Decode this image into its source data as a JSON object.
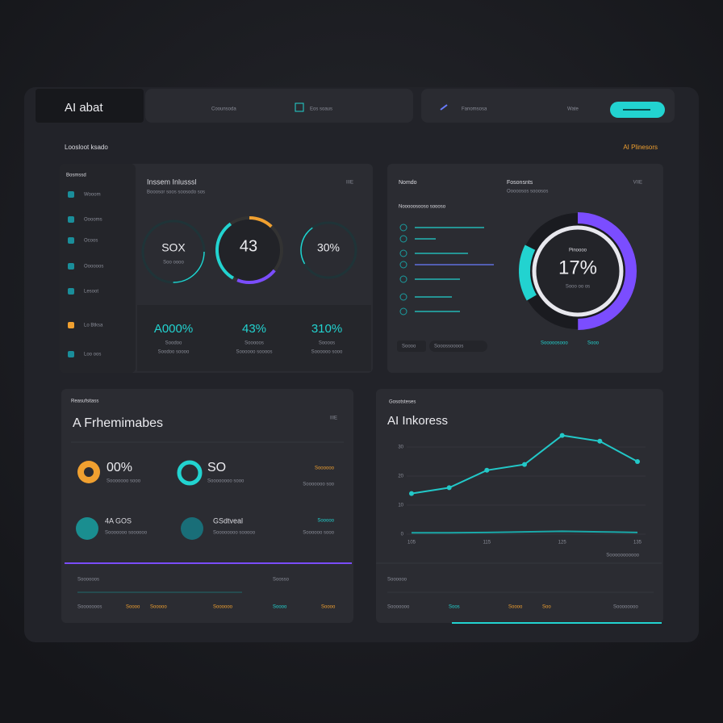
{
  "header": {
    "brand": "AI abat",
    "tab1": "Coounsoda",
    "tab2": "Eos soaus",
    "tab3": "Fanomsosa",
    "tab4": "Wate"
  },
  "subheader": {
    "left": "Loosloot ksado",
    "right": "AI Plinesors"
  },
  "panel1": {
    "sidebar_title": "Bosmssd",
    "sidebar": [
      "Wooom",
      "Ooooms",
      "Ocoos",
      "Oooooos",
      "Lesoot",
      "Lo Btksa",
      "Loo oos"
    ],
    "title": "Inssem Inlusssl",
    "subtitle": "Booosor soos soosodo sos",
    "corner": "IIIE",
    "gauges": [
      "SOX",
      "43",
      "30%"
    ],
    "gauge_sub": "Soo oooo",
    "stats": [
      {
        "value": "A000%",
        "label": "Soodoo",
        "sub": "Soodoo soooo"
      },
      {
        "value": "43%",
        "label": "Sooooos",
        "sub": "Soooooo soooos"
      },
      {
        "value": "310%",
        "label": "Soooos",
        "sub": "Soooooo sooo"
      }
    ]
  },
  "panel2": {
    "title": "Nomdo",
    "subtitle": "Fosonsnts",
    "subtitle2": "Ooooosos sooosos",
    "corner": "VIIE",
    "list_title": "Nooooosooso soooso",
    "center_top": "Pinoooo",
    "center": "17%",
    "center_sub": "Sooo oo os",
    "footer": [
      "Soooo",
      "Sooossoooos",
      "Sooooosooo",
      "Sooo"
    ]
  },
  "panel3": {
    "kicker": "Reasufsitass",
    "title": "A Frhemimabes",
    "corner": "IIIE",
    "items": [
      {
        "value": "00%",
        "sub": "Sooooooo sooo"
      },
      {
        "value": "SO",
        "sub": "Soooooooo sooo"
      },
      {
        "value": "4A GOS",
        "sub": "Sooooooo soooooo"
      },
      {
        "value": "GSdtveal",
        "sub": "Soooooooo sooooo"
      }
    ],
    "right": [
      "Soooooo",
      "Sooooooo soo",
      "Sooooo",
      "Soooooo sooo"
    ],
    "footer": [
      "Soooooos",
      "Soosso",
      "Sooooooos",
      "Soooo",
      "Sooooo",
      "Soooooo",
      "Soooo",
      "Soooo"
    ]
  },
  "panel4": {
    "kicker": "Gosotsteses",
    "title": "AI Inkoress",
    "chart": {
      "type": "line",
      "categories": [
        "105",
        null,
        "115",
        null,
        "125",
        null,
        "135"
      ],
      "series": [
        {
          "color": "#22c8c8",
          "values": [
            14,
            16,
            22,
            24,
            34,
            32,
            25
          ]
        },
        {
          "color": "#1aa8a8",
          "values": [
            0.5,
            0.5,
            0.6,
            0.8,
            1,
            0.8,
            0.6
          ]
        }
      ],
      "ylim": [
        0,
        35
      ],
      "yticks": [
        0,
        10,
        20,
        30
      ],
      "note": "Sooooooooooo"
    },
    "footer": [
      "Soooooo",
      "Sooooooo",
      "Soos",
      "Soooo",
      "Soo",
      "Soooooooo"
    ]
  }
}
